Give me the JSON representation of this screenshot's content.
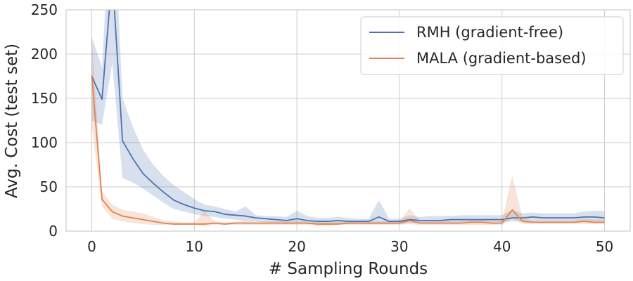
{
  "chart_data": {
    "type": "line",
    "title": "",
    "xlabel": "# Sampling Rounds",
    "ylabel": "Avg. Cost (test set)",
    "xlim": [
      -2.5,
      52.5
    ],
    "ylim": [
      0,
      250
    ],
    "xticks": [
      0,
      10,
      20,
      30,
      40,
      50
    ],
    "yticks": [
      0,
      50,
      100,
      150,
      200,
      250
    ],
    "grid": true,
    "legend_position": "top-right",
    "x": [
      0,
      1,
      2,
      3,
      4,
      5,
      6,
      7,
      8,
      9,
      10,
      11,
      12,
      13,
      14,
      15,
      16,
      17,
      18,
      19,
      20,
      21,
      22,
      23,
      24,
      25,
      26,
      27,
      28,
      29,
      30,
      31,
      32,
      33,
      34,
      35,
      36,
      37,
      38,
      39,
      40,
      41,
      42,
      43,
      44,
      45,
      46,
      47,
      48,
      49,
      50
    ],
    "series": [
      {
        "name": "RMH (gradient-free)",
        "color": "#4c72b0",
        "values": [
          175,
          149,
          290,
          102,
          82,
          65,
          54,
          44,
          35,
          30,
          26,
          23,
          22,
          19,
          18,
          17,
          15,
          14,
          13,
          12,
          14,
          12,
          11,
          11,
          12,
          11,
          11,
          11,
          16,
          11,
          11,
          13,
          12,
          12,
          12,
          13,
          13,
          13,
          13,
          13,
          13,
          15,
          15,
          16,
          15,
          15,
          15,
          15,
          16,
          16,
          15
        ],
        "lower": [
          125,
          120,
          190,
          60,
          55,
          48,
          40,
          32,
          25,
          22,
          19,
          17,
          16,
          14,
          13,
          11,
          11,
          10,
          9,
          8,
          9,
          9,
          8,
          8,
          8,
          8,
          8,
          8,
          8,
          8,
          8,
          9,
          9,
          9,
          9,
          9,
          9,
          9,
          9,
          10,
          10,
          11,
          11,
          11,
          11,
          11,
          11,
          11,
          11,
          11,
          11
        ],
        "upper": [
          220,
          185,
          400,
          150,
          118,
          92,
          75,
          62,
          52,
          44,
          36,
          30,
          28,
          25,
          22,
          28,
          18,
          17,
          17,
          16,
          23,
          17,
          15,
          15,
          16,
          15,
          14,
          14,
          35,
          14,
          14,
          18,
          16,
          17,
          17,
          17,
          18,
          18,
          18,
          18,
          18,
          24,
          20,
          21,
          20,
          20,
          20,
          20,
          22,
          23,
          23
        ]
      },
      {
        "name": "MALA (gradient-based)",
        "color": "#dd8452",
        "values": [
          176,
          36,
          22,
          17,
          15,
          13,
          11,
          9,
          8,
          8,
          8,
          8,
          9,
          8,
          9,
          9,
          9,
          9,
          9,
          9,
          9,
          9,
          8,
          8,
          8,
          9,
          9,
          9,
          9,
          9,
          9,
          12,
          9,
          9,
          9,
          9,
          9,
          10,
          10,
          9,
          9,
          24,
          11,
          10,
          10,
          10,
          10,
          10,
          11,
          10,
          10
        ],
        "lower": [
          118,
          28,
          14,
          11,
          9,
          8,
          7,
          7,
          7,
          7,
          7,
          6,
          7,
          7,
          7,
          7,
          7,
          7,
          7,
          7,
          7,
          7,
          6,
          6,
          7,
          7,
          7,
          7,
          7,
          7,
          7,
          8,
          7,
          7,
          7,
          7,
          7,
          7,
          7,
          7,
          7,
          14,
          8,
          8,
          8,
          8,
          8,
          8,
          8,
          8,
          8
        ],
        "upper": [
          220,
          45,
          30,
          24,
          22,
          20,
          16,
          12,
          11,
          10,
          10,
          22,
          11,
          10,
          11,
          11,
          11,
          11,
          11,
          11,
          11,
          11,
          10,
          10,
          11,
          11,
          11,
          11,
          11,
          11,
          11,
          26,
          11,
          11,
          11,
          11,
          11,
          13,
          13,
          11,
          12,
          63,
          15,
          12,
          12,
          12,
          12,
          12,
          14,
          13,
          13
        ]
      }
    ]
  }
}
